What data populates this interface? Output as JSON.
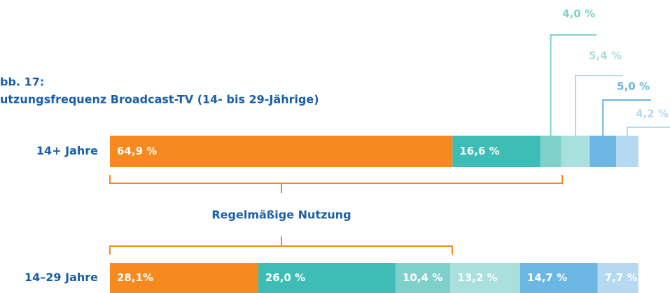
{
  "chart_data": {
    "type": "stacked-bar",
    "title": "bb. 17:",
    "subtitle": "utzungsfrequenz Broadcast-TV (14- bis 29-Jährige)",
    "annotation": "Regelmäßige Nutzung",
    "categories": [
      "14+ Jahre",
      "14–29 Jahre"
    ],
    "xlim": [
      0,
      100
    ],
    "series": [
      {
        "color": "#f7891f",
        "values": [
          64.9,
          28.1
        ],
        "value_labels": [
          "64,9 %",
          "28,1%"
        ]
      },
      {
        "color": "#3dbdb5",
        "values": [
          16.6,
          26.0
        ],
        "value_labels": [
          "16,6 %",
          "26,0 %"
        ]
      },
      {
        "color": "#7fd0cb",
        "values": [
          4.0,
          10.4
        ],
        "value_labels": [
          "4,0 %",
          "10,4 %"
        ]
      },
      {
        "color": "#a9dfdc",
        "values": [
          5.4,
          13.2
        ],
        "value_labels": [
          "5,4 %",
          "13,2 %"
        ]
      },
      {
        "color": "#6bb6e3",
        "values": [
          5.0,
          14.7
        ],
        "value_labels": [
          "5,0 %",
          "14,7 %"
        ]
      },
      {
        "color": "#b5d9f0",
        "values": [
          4.2,
          7.7
        ],
        "value_labels": [
          "4,2 %",
          "7,7 %"
        ]
      }
    ]
  }
}
